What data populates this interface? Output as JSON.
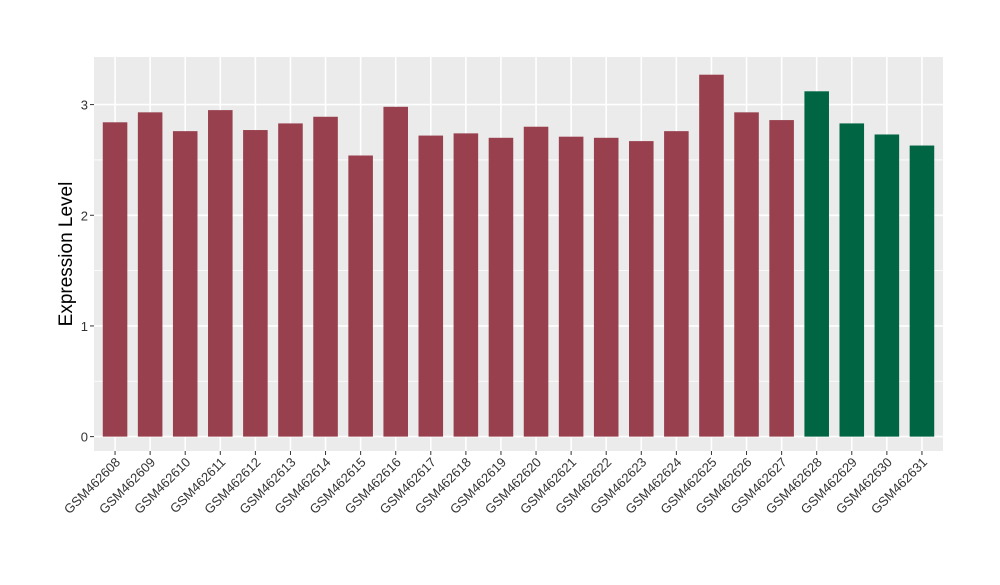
{
  "chart_data": {
    "type": "bar",
    "title": "",
    "xlabel": "",
    "ylabel": "Expression Level",
    "ylim": [
      -0.13,
      3.43
    ],
    "yticks": [
      0,
      1,
      2,
      3
    ],
    "grid": true,
    "categories": [
      "GSM462608",
      "GSM462609",
      "GSM462610",
      "GSM462611",
      "GSM462612",
      "GSM462613",
      "GSM462614",
      "GSM462615",
      "GSM462616",
      "GSM462617",
      "GSM462618",
      "GSM462619",
      "GSM462620",
      "GSM462621",
      "GSM462622",
      "GSM462623",
      "GSM462624",
      "GSM462625",
      "GSM462626",
      "GSM462627",
      "GSM462628",
      "GSM462629",
      "GSM462630",
      "GSM462631"
    ],
    "values": [
      2.84,
      2.93,
      2.76,
      2.95,
      2.77,
      2.83,
      2.89,
      2.54,
      2.98,
      2.72,
      2.74,
      2.7,
      2.8,
      2.71,
      2.7,
      2.67,
      2.76,
      3.27,
      2.93,
      2.86,
      3.12,
      2.83,
      2.73,
      2.63
    ],
    "bar_colors": [
      "#98404e",
      "#98404e",
      "#98404e",
      "#98404e",
      "#98404e",
      "#98404e",
      "#98404e",
      "#98404e",
      "#98404e",
      "#98404e",
      "#98404e",
      "#98404e",
      "#98404e",
      "#98404e",
      "#98404e",
      "#98404e",
      "#98404e",
      "#98404e",
      "#98404e",
      "#98404e",
      "#006543",
      "#006543",
      "#006543",
      "#006543"
    ],
    "colors": {
      "panel": "#ebebeb",
      "grid": "#ffffff",
      "group_a": "#98404e",
      "group_b": "#006543"
    }
  }
}
